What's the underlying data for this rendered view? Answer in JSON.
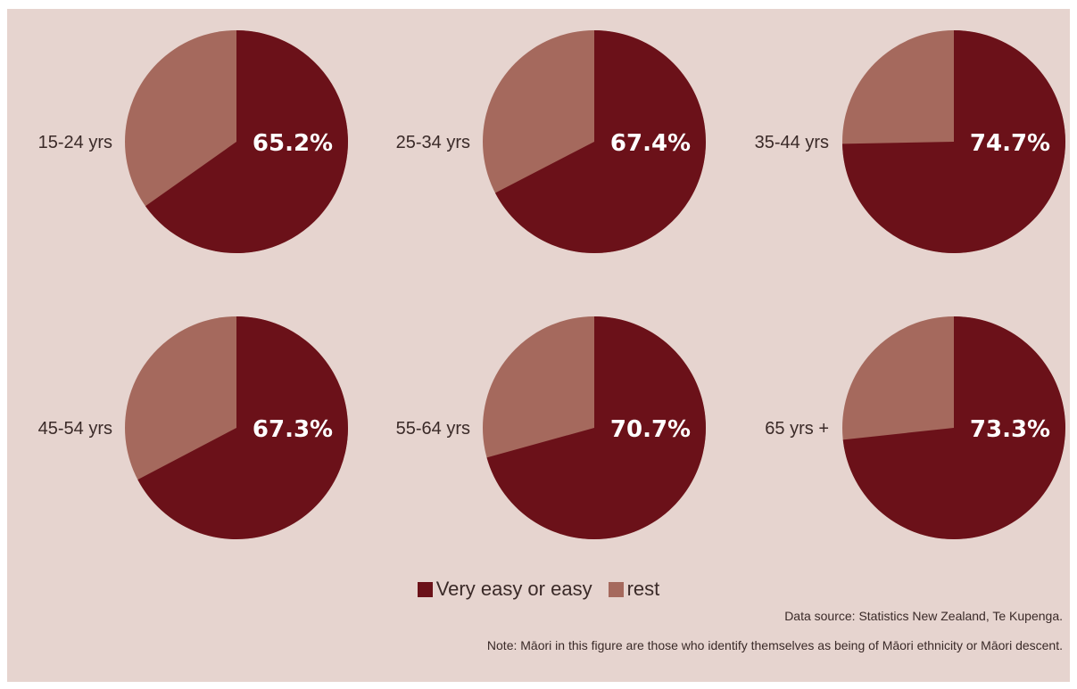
{
  "chart_data": {
    "type": "pie",
    "legend": [
      {
        "label": "Very easy or easy",
        "color": "#6b1119"
      },
      {
        "label": "rest",
        "color": "#a5695d"
      }
    ],
    "legend_placement": "bottom",
    "panels": [
      {
        "age": "15-24 yrs",
        "value": 65.2,
        "label": "65.2%"
      },
      {
        "age": "25-34 yrs",
        "value": 67.4,
        "label": "67.4%"
      },
      {
        "age": "35-44 yrs",
        "value": 74.7,
        "label": "74.7%"
      },
      {
        "age": "45-54 yrs",
        "value": 67.3,
        "label": "67.3%"
      },
      {
        "age": "55-64 yrs",
        "value": 70.7,
        "label": "70.7%"
      },
      {
        "age": "65 yrs +",
        "value": 73.3,
        "label": "73.3%"
      }
    ]
  },
  "footer": {
    "source": "Data source: Statistics New Zealand, Te Kupenga.",
    "note": "Note: Māori in this figure are those who identify themselves as being of Māori ethnicity or Māori descent."
  },
  "colors": {
    "background": "#e6d4cf",
    "primary": "#6b1119",
    "secondary": "#a5695d"
  }
}
